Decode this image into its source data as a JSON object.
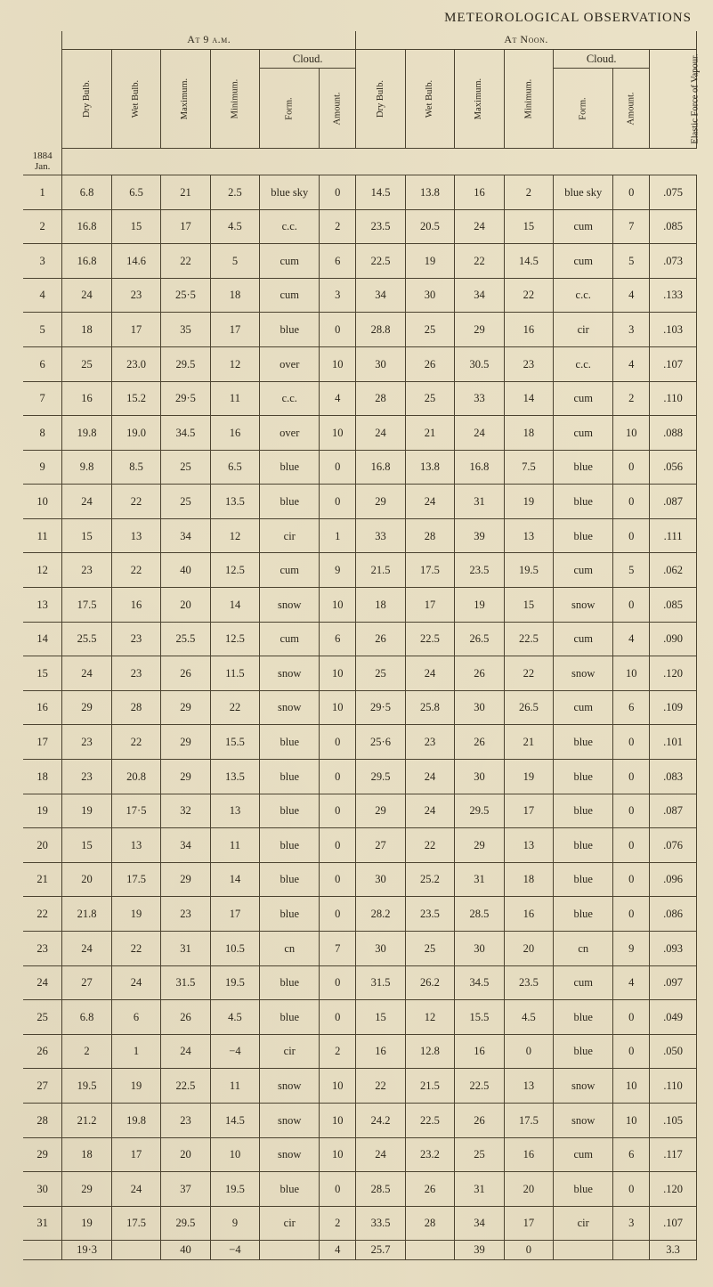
{
  "title": "METEOROLOGICAL OBSERVATIONS",
  "section_left": "At 9 a.m.",
  "section_right": "At Noon.",
  "group_cloud": "Cloud.",
  "col_headers": {
    "dry": "Dry Bulb.",
    "wet": "Wet Bulb.",
    "max": "Maximum.",
    "min": "Minimum.",
    "form": "Form.",
    "amount": "Amount.",
    "eforce": "Elastic Force of Vapour."
  },
  "year_label": "1884 Jan.",
  "colors": {
    "paper": "#eae1c6",
    "ink": "#2a251a",
    "rule": "#4a4230"
  },
  "rows": [
    {
      "d": "1",
      "l": {
        "dry": "6.8",
        "wet": "6.5",
        "max": "21",
        "min": "2.5",
        "form": "blue sky",
        "amt": "0"
      },
      "r": {
        "dry": "14.5",
        "wet": "13.8",
        "max": "16",
        "min": "2",
        "form": "blue sky",
        "amt": "0",
        "ef": ".075"
      }
    },
    {
      "d": "2",
      "l": {
        "dry": "16.8",
        "wet": "15",
        "max": "17",
        "min": "4.5",
        "form": "c.c.",
        "amt": "2"
      },
      "r": {
        "dry": "23.5",
        "wet": "20.5",
        "max": "24",
        "min": "15",
        "form": "cum",
        "amt": "7",
        "ef": ".085"
      }
    },
    {
      "d": "3",
      "l": {
        "dry": "16.8",
        "wet": "14.6",
        "max": "22",
        "min": "5",
        "form": "cum",
        "amt": "6"
      },
      "r": {
        "dry": "22.5",
        "wet": "19",
        "max": "22",
        "min": "14.5",
        "form": "cum",
        "amt": "5",
        "ef": ".073"
      }
    },
    {
      "d": "4",
      "l": {
        "dry": "24",
        "wet": "23",
        "max": "25·5",
        "min": "18",
        "form": "cum",
        "amt": "3"
      },
      "r": {
        "dry": "34",
        "wet": "30",
        "max": "34",
        "min": "22",
        "form": "c.c.",
        "amt": "4",
        "ef": ".133"
      }
    },
    {
      "d": "5",
      "l": {
        "dry": "18",
        "wet": "17",
        "max": "35",
        "min": "17",
        "form": "blue",
        "amt": "0"
      },
      "r": {
        "dry": "28.8",
        "wet": "25",
        "max": "29",
        "min": "16",
        "form": "cir",
        "amt": "3",
        "ef": ".103"
      }
    },
    {
      "d": "6",
      "l": {
        "dry": "25",
        "wet": "23.0",
        "max": "29.5",
        "min": "12",
        "form": "over",
        "amt": "10"
      },
      "r": {
        "dry": "30",
        "wet": "26",
        "max": "30.5",
        "min": "23",
        "form": "c.c.",
        "amt": "4",
        "ef": ".107"
      }
    },
    {
      "d": "7",
      "l": {
        "dry": "16",
        "wet": "15.2",
        "max": "29·5",
        "min": "11",
        "form": "c.c.",
        "amt": "4"
      },
      "r": {
        "dry": "28",
        "wet": "25",
        "max": "33",
        "min": "14",
        "form": "cum",
        "amt": "2",
        "ef": ".110"
      }
    },
    {
      "d": "8",
      "l": {
        "dry": "19.8",
        "wet": "19.0",
        "max": "34.5",
        "min": "16",
        "form": "over",
        "amt": "10"
      },
      "r": {
        "dry": "24",
        "wet": "21",
        "max": "24",
        "min": "18",
        "form": "cum",
        "amt": "10",
        "ef": ".088"
      }
    },
    {
      "d": "9",
      "l": {
        "dry": "9.8",
        "wet": "8.5",
        "max": "25",
        "min": "6.5",
        "form": "blue",
        "amt": "0"
      },
      "r": {
        "dry": "16.8",
        "wet": "13.8",
        "max": "16.8",
        "min": "7.5",
        "form": "blue",
        "amt": "0",
        "ef": ".056"
      }
    },
    {
      "d": "10",
      "l": {
        "dry": "24",
        "wet": "22",
        "max": "25",
        "min": "13.5",
        "form": "blue",
        "amt": "0"
      },
      "r": {
        "dry": "29",
        "wet": "24",
        "max": "31",
        "min": "19",
        "form": "blue",
        "amt": "0",
        "ef": ".087"
      }
    },
    {
      "d": "11",
      "l": {
        "dry": "15",
        "wet": "13",
        "max": "34",
        "min": "12",
        "form": "cir",
        "amt": "1"
      },
      "r": {
        "dry": "33",
        "wet": "28",
        "max": "39",
        "min": "13",
        "form": "blue",
        "amt": "0",
        "ef": ".111"
      }
    },
    {
      "d": "12",
      "l": {
        "dry": "23",
        "wet": "22",
        "max": "40",
        "min": "12.5",
        "form": "cum",
        "amt": "9"
      },
      "r": {
        "dry": "21.5",
        "wet": "17.5",
        "max": "23.5",
        "min": "19.5",
        "form": "cum",
        "amt": "5",
        "ef": ".062"
      }
    },
    {
      "d": "13",
      "l": {
        "dry": "17.5",
        "wet": "16",
        "max": "20",
        "min": "14",
        "form": "snow",
        "amt": "10"
      },
      "r": {
        "dry": "18",
        "wet": "17",
        "max": "19",
        "min": "15",
        "form": "snow",
        "amt": "0",
        "ef": ".085"
      }
    },
    {
      "d": "14",
      "l": {
        "dry": "25.5",
        "wet": "23",
        "max": "25.5",
        "min": "12.5",
        "form": "cum",
        "amt": "6"
      },
      "r": {
        "dry": "26",
        "wet": "22.5",
        "max": "26.5",
        "min": "22.5",
        "form": "cum",
        "amt": "4",
        "ef": ".090"
      }
    },
    {
      "d": "15",
      "l": {
        "dry": "24",
        "wet": "23",
        "max": "26",
        "min": "11.5",
        "form": "snow",
        "amt": "10"
      },
      "r": {
        "dry": "25",
        "wet": "24",
        "max": "26",
        "min": "22",
        "form": "snow",
        "amt": "10",
        "ef": ".120"
      }
    },
    {
      "d": "16",
      "l": {
        "dry": "29",
        "wet": "28",
        "max": "29",
        "min": "22",
        "form": "snow",
        "amt": "10"
      },
      "r": {
        "dry": "29·5",
        "wet": "25.8",
        "max": "30",
        "min": "26.5",
        "form": "cum",
        "amt": "6",
        "ef": ".109"
      }
    },
    {
      "d": "17",
      "l": {
        "dry": "23",
        "wet": "22",
        "max": "29",
        "min": "15.5",
        "form": "blue",
        "amt": "0"
      },
      "r": {
        "dry": "25·6",
        "wet": "23",
        "max": "26",
        "min": "21",
        "form": "blue",
        "amt": "0",
        "ef": ".101"
      }
    },
    {
      "d": "18",
      "l": {
        "dry": "23",
        "wet": "20.8",
        "max": "29",
        "min": "13.5",
        "form": "blue",
        "amt": "0"
      },
      "r": {
        "dry": "29.5",
        "wet": "24",
        "max": "30",
        "min": "19",
        "form": "blue",
        "amt": "0",
        "ef": ".083"
      }
    },
    {
      "d": "19",
      "l": {
        "dry": "19",
        "wet": "17·5",
        "max": "32",
        "min": "13",
        "form": "blue",
        "amt": "0"
      },
      "r": {
        "dry": "29",
        "wet": "24",
        "max": "29.5",
        "min": "17",
        "form": "blue",
        "amt": "0",
        "ef": ".087"
      }
    },
    {
      "d": "20",
      "l": {
        "dry": "15",
        "wet": "13",
        "max": "34",
        "min": "11",
        "form": "blue",
        "amt": "0"
      },
      "r": {
        "dry": "27",
        "wet": "22",
        "max": "29",
        "min": "13",
        "form": "blue",
        "amt": "0",
        "ef": ".076"
      }
    },
    {
      "d": "21",
      "l": {
        "dry": "20",
        "wet": "17.5",
        "max": "29",
        "min": "14",
        "form": "blue",
        "amt": "0"
      },
      "r": {
        "dry": "30",
        "wet": "25.2",
        "max": "31",
        "min": "18",
        "form": "blue",
        "amt": "0",
        "ef": ".096"
      }
    },
    {
      "d": "22",
      "l": {
        "dry": "21.8",
        "wet": "19",
        "max": "23",
        "min": "17",
        "form": "blue",
        "amt": "0"
      },
      "r": {
        "dry": "28.2",
        "wet": "23.5",
        "max": "28.5",
        "min": "16",
        "form": "blue",
        "amt": "0",
        "ef": ".086"
      }
    },
    {
      "d": "23",
      "l": {
        "dry": "24",
        "wet": "22",
        "max": "31",
        "min": "10.5",
        "form": "cn",
        "amt": "7"
      },
      "r": {
        "dry": "30",
        "wet": "25",
        "max": "30",
        "min": "20",
        "form": "cn",
        "amt": "9",
        "ef": ".093"
      }
    },
    {
      "d": "24",
      "l": {
        "dry": "27",
        "wet": "24",
        "max": "31.5",
        "min": "19.5",
        "form": "blue",
        "amt": "0"
      },
      "r": {
        "dry": "31.5",
        "wet": "26.2",
        "max": "34.5",
        "min": "23.5",
        "form": "cum",
        "amt": "4",
        "ef": ".097"
      }
    },
    {
      "d": "25",
      "l": {
        "dry": "6.8",
        "wet": "6",
        "max": "26",
        "min": "4.5",
        "form": "blue",
        "amt": "0"
      },
      "r": {
        "dry": "15",
        "wet": "12",
        "max": "15.5",
        "min": "4.5",
        "form": "blue",
        "amt": "0",
        "ef": ".049"
      }
    },
    {
      "d": "26",
      "l": {
        "dry": "2",
        "wet": "1",
        "max": "24",
        "min": "−4",
        "form": "cir",
        "amt": "2"
      },
      "r": {
        "dry": "16",
        "wet": "12.8",
        "max": "16",
        "min": "0",
        "form": "blue",
        "amt": "0",
        "ef": ".050"
      }
    },
    {
      "d": "27",
      "l": {
        "dry": "19.5",
        "wet": "19",
        "max": "22.5",
        "min": "11",
        "form": "snow",
        "amt": "10"
      },
      "r": {
        "dry": "22",
        "wet": "21.5",
        "max": "22.5",
        "min": "13",
        "form": "snow",
        "amt": "10",
        "ef": ".110"
      }
    },
    {
      "d": "28",
      "l": {
        "dry": "21.2",
        "wet": "19.8",
        "max": "23",
        "min": "14.5",
        "form": "snow",
        "amt": "10"
      },
      "r": {
        "dry": "24.2",
        "wet": "22.5",
        "max": "26",
        "min": "17.5",
        "form": "snow",
        "amt": "10",
        "ef": ".105"
      }
    },
    {
      "d": "29",
      "l": {
        "dry": "18",
        "wet": "17",
        "max": "20",
        "min": "10",
        "form": "snow",
        "amt": "10"
      },
      "r": {
        "dry": "24",
        "wet": "23.2",
        "max": "25",
        "min": "16",
        "form": "cum",
        "amt": "6",
        "ef": ".117"
      }
    },
    {
      "d": "30",
      "l": {
        "dry": "29",
        "wet": "24",
        "max": "37",
        "min": "19.5",
        "form": "blue",
        "amt": "0"
      },
      "r": {
        "dry": "28.5",
        "wet": "26",
        "max": "31",
        "min": "20",
        "form": "blue",
        "amt": "0",
        "ef": ".120"
      }
    },
    {
      "d": "31",
      "l": {
        "dry": "19",
        "wet": "17.5",
        "max": "29.5",
        "min": "9",
        "form": "cir",
        "amt": "2"
      },
      "r": {
        "dry": "33.5",
        "wet": "28",
        "max": "34",
        "min": "17",
        "form": "cir",
        "amt": "3",
        "ef": ".107"
      }
    }
  ],
  "summary": {
    "dry": "19·3",
    "max": "40",
    "min": "−4",
    "amt": "4",
    "rdry": "25.7",
    "rmax": "39",
    "rmin": "0",
    "ref": "3.3"
  }
}
